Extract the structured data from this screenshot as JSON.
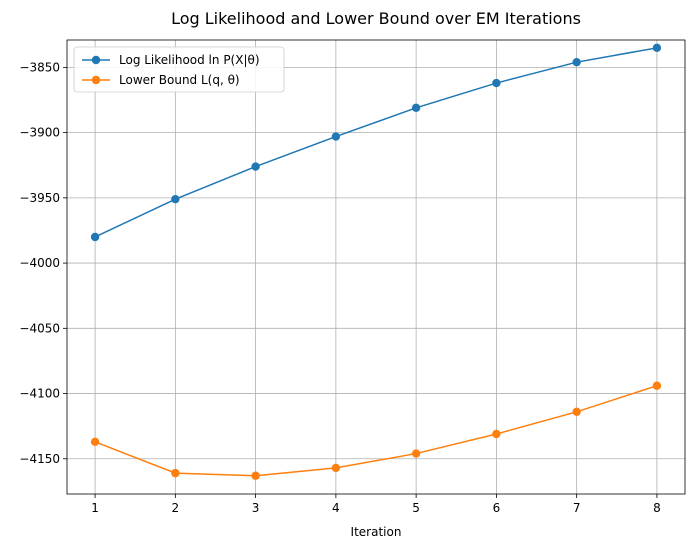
{
  "chart_data": {
    "type": "line",
    "title": "Log Likelihood and Lower Bound over EM Iterations",
    "xlabel": "Iteration",
    "ylabel": "",
    "x": [
      1,
      2,
      3,
      4,
      5,
      6,
      7,
      8
    ],
    "xlim": [
      0.65,
      8.35
    ],
    "ylim": [
      -4177,
      -3829
    ],
    "xticks": [
      1,
      2,
      3,
      4,
      5,
      6,
      7,
      8
    ],
    "yticks": [
      -3850,
      -3900,
      -3950,
      -4000,
      -4050,
      -4100,
      -4150
    ],
    "ytick_labels": [
      "−3850",
      "−3900",
      "−3950",
      "−4000",
      "−4050",
      "−4100",
      "−4150"
    ],
    "grid": true,
    "legend_position": "top-left",
    "series": [
      {
        "name": "Log Likelihood ln P(X|θ)",
        "color": "#1f77b4",
        "marker": "circle",
        "values": [
          -3980,
          -3951,
          -3926,
          -3903,
          -3881,
          -3862,
          -3846,
          -3835
        ]
      },
      {
        "name": "Lower Bound L(q, θ)",
        "color": "#ff7f0e",
        "marker": "circle",
        "values": [
          -4137,
          -4161,
          -4163,
          -4157,
          -4146,
          -4131,
          -4114,
          -4094
        ]
      }
    ]
  }
}
